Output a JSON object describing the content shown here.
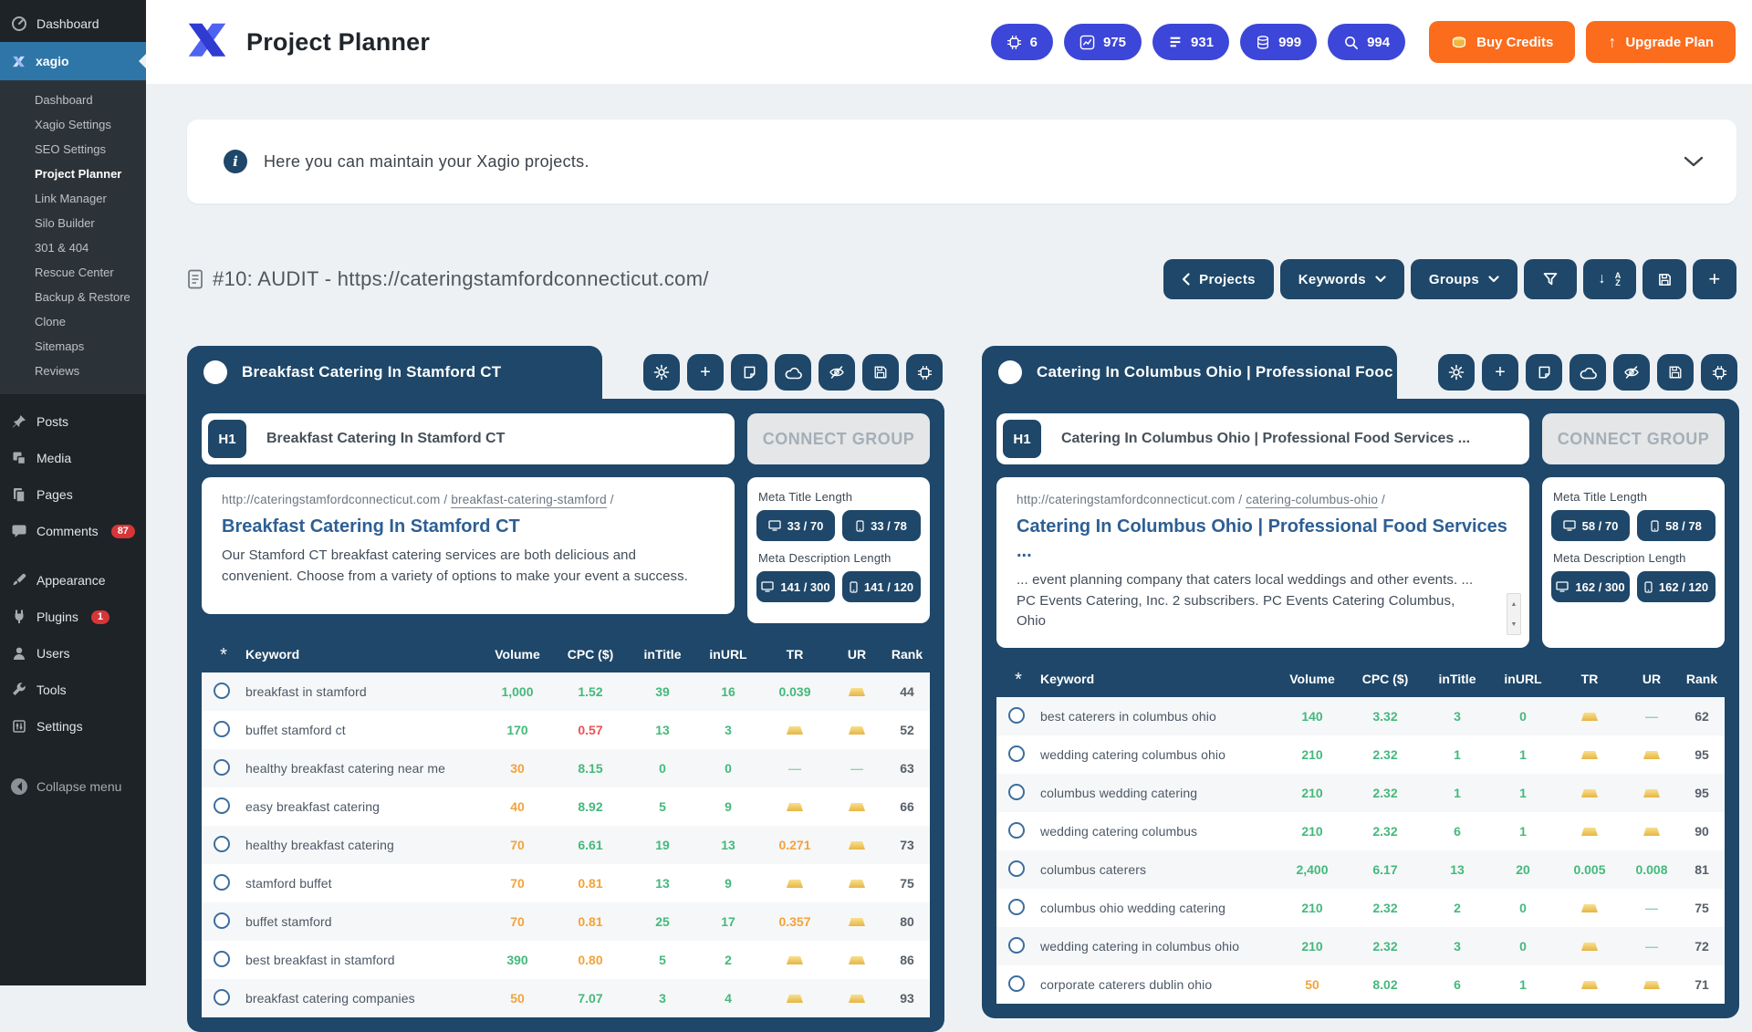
{
  "sidebar": {
    "dashboard": "Dashboard",
    "plugin": "xagio",
    "submenu": [
      "Dashboard",
      "Xagio Settings",
      "SEO Settings",
      "Project Planner",
      "Link Manager",
      "Silo Builder",
      "301 & 404",
      "Rescue Center",
      "Backup & Restore",
      "Clone",
      "Sitemaps",
      "Reviews"
    ],
    "menu": [
      {
        "label": "Posts"
      },
      {
        "label": "Media"
      },
      {
        "label": "Pages"
      },
      {
        "label": "Comments",
        "badge": "87"
      },
      {
        "label": "Appearance"
      },
      {
        "label": "Plugins",
        "badge": "1"
      },
      {
        "label": "Users"
      },
      {
        "label": "Tools"
      },
      {
        "label": "Settings"
      }
    ],
    "collapse": "Collapse menu"
  },
  "header": {
    "title": "Project Planner",
    "stats": [
      {
        "icon": "ai-chip-icon",
        "value": "6"
      },
      {
        "icon": "line-chart-icon",
        "value": "975"
      },
      {
        "icon": "text-rows-icon",
        "value": "931"
      },
      {
        "icon": "database-icon",
        "value": "999"
      },
      {
        "icon": "search-icon",
        "value": "994"
      }
    ],
    "buy_credits_label": "Buy Credits",
    "upgrade_plan_label": "Upgrade Plan"
  },
  "info_banner": {
    "text": "Here you can maintain your Xagio projects."
  },
  "toolbar": {
    "page_title": "#10: AUDIT - https://cateringstamfordconnecticut.com/",
    "projects_label": "Projects",
    "keywords_label": "Keywords",
    "groups_label": "Groups"
  },
  "table": {
    "headers": {
      "keyword": "Keyword",
      "volume": "Volume",
      "cpc": "CPC ($)",
      "intitle": "inTitle",
      "inurl": "inURL",
      "tr": "TR",
      "ur": "UR",
      "rank": "Rank"
    }
  },
  "icons": {
    "header_stats": [
      "ai-chip-icon",
      "line-chart-icon",
      "text-rows-icon",
      "database-icon",
      "search-icon"
    ],
    "card_actions": [
      "gear-icon",
      "plus-icon",
      "note-icon",
      "cloud-icon",
      "eye-off-icon",
      "save-icon",
      "ai-chip-icon"
    ],
    "toolbar": [
      "chevron-left-icon",
      "chevron-down-icon",
      "funnel-icon",
      "sort-az-icon",
      "save-icon",
      "plus-icon"
    ],
    "value_icon": "gold-bar-icon"
  },
  "colors": {
    "navy": "#1e4769",
    "indigo_badge": "#3c46d8",
    "orange_button": "#fb6c1d",
    "green_value": "#44b97c",
    "orange_value": "#f2a33c",
    "red_value": "#ec5353",
    "sidebar_active_blue": "#2e76a8",
    "badge_red": "#d63638"
  },
  "cards": [
    {
      "tab_title": "Breakfast Catering In Stamford CT",
      "h1_tag": "H1",
      "h1_value": "Breakfast Catering In Stamford CT",
      "connect_label": "CONNECT GROUP",
      "serp": {
        "url_base": "http://cateringstamfordconnecticut.com /",
        "url_slug": "breakfast-catering-stamford",
        "url_suffix": "/",
        "title": "Breakfast Catering In Stamford CT",
        "description": "Our Stamford CT breakfast catering services are both delicious and convenient. Choose from a variety of options to make your event a success."
      },
      "meta": {
        "title_label": "Meta Title Length",
        "title_desktop": "33 / 70",
        "title_mobile": "33 / 78",
        "desc_label": "Meta Description Length",
        "desc_desktop": "141 / 300",
        "desc_mobile": "141 / 120"
      },
      "rows": [
        {
          "keyword": "breakfast in stamford",
          "volume": "1,000",
          "volume_c": "g",
          "cpc": "1.52",
          "cpc_c": "g",
          "intitle": "39",
          "inurl": "16",
          "tr": "0.039",
          "tr_c": "g",
          "ur": "gold",
          "rank": "44"
        },
        {
          "keyword": "buffet stamford ct",
          "volume": "170",
          "volume_c": "g",
          "cpc": "0.57",
          "cpc_c": "r",
          "intitle": "13",
          "inurl": "3",
          "tr": "gold",
          "ur": "gold",
          "rank": "52"
        },
        {
          "keyword": "healthy breakfast catering near me",
          "volume": "30",
          "volume_c": "o",
          "cpc": "8.15",
          "cpc_c": "g",
          "intitle": "0",
          "inurl": "0",
          "tr": "dash",
          "ur": "dash",
          "rank": "63"
        },
        {
          "keyword": "easy breakfast catering",
          "volume": "40",
          "volume_c": "o",
          "cpc": "8.92",
          "cpc_c": "g",
          "intitle": "5",
          "inurl": "9",
          "tr": "gold",
          "ur": "gold",
          "rank": "66"
        },
        {
          "keyword": "healthy breakfast catering",
          "volume": "70",
          "volume_c": "o",
          "cpc": "6.61",
          "cpc_c": "g",
          "intitle": "19",
          "inurl": "13",
          "tr": "0.271",
          "tr_c": "o",
          "ur": "gold",
          "rank": "73"
        },
        {
          "keyword": "stamford buffet",
          "volume": "70",
          "volume_c": "o",
          "cpc": "0.81",
          "cpc_c": "o",
          "intitle": "13",
          "inurl": "9",
          "tr": "gold",
          "ur": "gold",
          "rank": "75"
        },
        {
          "keyword": "buffet stamford",
          "volume": "70",
          "volume_c": "o",
          "cpc": "0.81",
          "cpc_c": "o",
          "intitle": "25",
          "inurl": "17",
          "tr": "0.357",
          "tr_c": "o",
          "ur": "gold",
          "rank": "80"
        },
        {
          "keyword": "best breakfast in stamford",
          "volume": "390",
          "volume_c": "g",
          "cpc": "0.80",
          "cpc_c": "o",
          "intitle": "5",
          "inurl": "2",
          "tr": "gold",
          "ur": "gold",
          "rank": "86"
        },
        {
          "keyword": "breakfast catering companies",
          "volume": "50",
          "volume_c": "o",
          "cpc": "7.07",
          "cpc_c": "g",
          "intitle": "3",
          "inurl": "4",
          "tr": "gold",
          "ur": "gold",
          "rank": "93"
        }
      ]
    },
    {
      "tab_title": "Catering In Columbus Ohio | Professional Fooc",
      "h1_tag": "H1",
      "h1_value": "Catering In Columbus Ohio | Professional Food Services ...",
      "connect_label": "CONNECT GROUP",
      "serp": {
        "url_base": "http://cateringstamfordconnecticut.com /",
        "url_slug": "catering-columbus-ohio",
        "url_suffix": "/",
        "title": "Catering In Columbus Ohio | Professional Food Services ...",
        "description": "... event planning company that caters local weddings and other events. ... PC Events Catering, Inc. 2 subscribers. PC Events Catering Columbus, Ohio"
      },
      "meta": {
        "title_label": "Meta Title Length",
        "title_desktop": "58 / 70",
        "title_mobile": "58 / 78",
        "desc_label": "Meta Description Length",
        "desc_desktop": "162 / 300",
        "desc_mobile": "162 / 120"
      },
      "rows": [
        {
          "keyword": "best caterers in columbus ohio",
          "volume": "140",
          "volume_c": "g",
          "cpc": "3.32",
          "cpc_c": "g",
          "intitle": "3",
          "inurl": "0",
          "tr": "gold",
          "ur": "dash",
          "rank": "62"
        },
        {
          "keyword": "wedding catering columbus ohio",
          "volume": "210",
          "volume_c": "g",
          "cpc": "2.32",
          "cpc_c": "g",
          "intitle": "1",
          "inurl": "1",
          "tr": "gold",
          "ur": "gold",
          "rank": "95"
        },
        {
          "keyword": "columbus wedding catering",
          "volume": "210",
          "volume_c": "g",
          "cpc": "2.32",
          "cpc_c": "g",
          "intitle": "1",
          "inurl": "1",
          "tr": "gold",
          "ur": "gold",
          "rank": "95"
        },
        {
          "keyword": "wedding catering columbus",
          "volume": "210",
          "volume_c": "g",
          "cpc": "2.32",
          "cpc_c": "g",
          "intitle": "6",
          "inurl": "1",
          "tr": "gold",
          "ur": "gold",
          "rank": "90"
        },
        {
          "keyword": "columbus caterers",
          "volume": "2,400",
          "volume_c": "g",
          "cpc": "6.17",
          "cpc_c": "g",
          "intitle": "13",
          "inurl": "20",
          "tr": "0.005",
          "tr_c": "g",
          "ur": "0.008",
          "ur_c": "g",
          "rank": "81"
        },
        {
          "keyword": "columbus ohio wedding catering",
          "volume": "210",
          "volume_c": "g",
          "cpc": "2.32",
          "cpc_c": "g",
          "intitle": "2",
          "inurl": "0",
          "tr": "gold",
          "ur": "dash",
          "rank": "75"
        },
        {
          "keyword": "wedding catering in columbus ohio",
          "volume": "210",
          "volume_c": "g",
          "cpc": "2.32",
          "cpc_c": "g",
          "intitle": "3",
          "inurl": "0",
          "tr": "gold",
          "ur": "dash",
          "rank": "72"
        },
        {
          "keyword": "corporate caterers dublin ohio",
          "volume": "50",
          "volume_c": "o",
          "cpc": "8.02",
          "cpc_c": "g",
          "intitle": "6",
          "inurl": "1",
          "tr": "gold",
          "ur": "gold",
          "rank": "71"
        }
      ]
    }
  ]
}
